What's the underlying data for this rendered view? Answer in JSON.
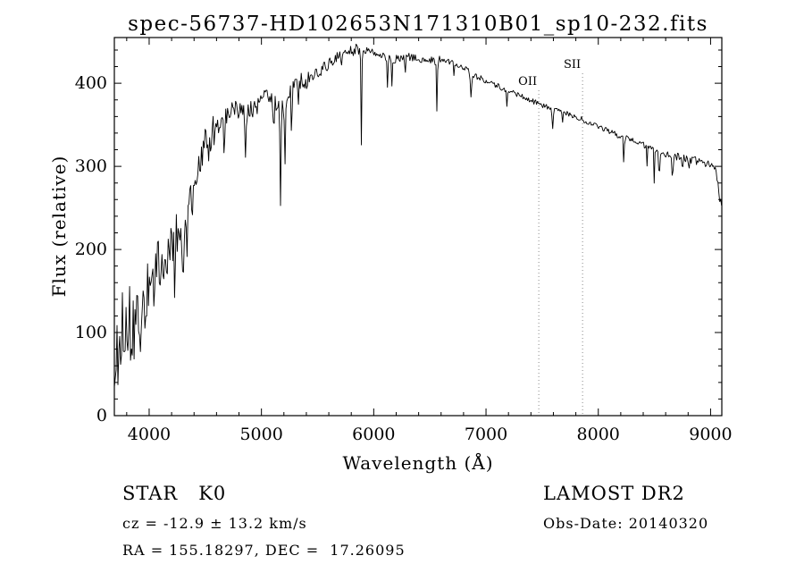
{
  "page": {
    "background": "#ffffff"
  },
  "chart_data": {
    "type": "line",
    "title": "spec-56737-HD102653N171310B01_sp10-232.fits",
    "xlabel": "Wavelength (Å)",
    "ylabel": "Flux (relative)",
    "xlim": [
      3690,
      9100
    ],
    "ylim": [
      0,
      455
    ],
    "xticks": [
      4000,
      5000,
      6000,
      7000,
      8000,
      9000
    ],
    "yticks": [
      0,
      100,
      200,
      300,
      400
    ],
    "x_minor_step": 200,
    "y_minor_step": 20,
    "grid": false,
    "legend": null,
    "colors": {
      "line": "#000000",
      "axis": "#000000",
      "marker_line": "#8a8a8a",
      "text": "#000000",
      "background": "#ffffff"
    },
    "line_markers": [
      {
        "label": "OII",
        "wavelength": 7470,
        "label_y": 95
      },
      {
        "label": "SII",
        "wavelength": 7860,
        "label_y": 76
      }
    ],
    "series": [
      {
        "name": "spectrum",
        "continuum_points": [
          [
            3690,
            45
          ],
          [
            3710,
            95
          ],
          [
            3730,
            60
          ],
          [
            3760,
            110
          ],
          [
            3790,
            85
          ],
          [
            3820,
            120
          ],
          [
            3850,
            90
          ],
          [
            3880,
            125
          ],
          [
            3910,
            100
          ],
          [
            3950,
            140
          ],
          [
            4000,
            160
          ],
          [
            4050,
            175
          ],
          [
            4100,
            185
          ],
          [
            4150,
            195
          ],
          [
            4200,
            205
          ],
          [
            4250,
            215
          ],
          [
            4300,
            225
          ],
          [
            4350,
            255
          ],
          [
            4400,
            285
          ],
          [
            4450,
            305
          ],
          [
            4500,
            325
          ],
          [
            4550,
            340
          ],
          [
            4600,
            350
          ],
          [
            4650,
            355
          ],
          [
            4700,
            360
          ],
          [
            4750,
            363
          ],
          [
            4800,
            366
          ],
          [
            4850,
            362
          ],
          [
            4900,
            372
          ],
          [
            4950,
            380
          ],
          [
            5000,
            384
          ],
          [
            5050,
            386
          ],
          [
            5100,
            380
          ],
          [
            5150,
            372
          ],
          [
            5200,
            376
          ],
          [
            5250,
            386
          ],
          [
            5300,
            396
          ],
          [
            5350,
            402
          ],
          [
            5400,
            406
          ],
          [
            5450,
            409
          ],
          [
            5500,
            413
          ],
          [
            5550,
            418
          ],
          [
            5600,
            423
          ],
          [
            5650,
            429
          ],
          [
            5700,
            433
          ],
          [
            5750,
            437
          ],
          [
            5800,
            439
          ],
          [
            5850,
            441
          ],
          [
            5900,
            437
          ],
          [
            5950,
            439
          ],
          [
            6000,
            438
          ],
          [
            6050,
            435
          ],
          [
            6100,
            431
          ],
          [
            6150,
            429
          ],
          [
            6200,
            429
          ],
          [
            6250,
            431
          ],
          [
            6300,
            432
          ],
          [
            6350,
            431
          ],
          [
            6400,
            430
          ],
          [
            6450,
            428
          ],
          [
            6500,
            429
          ],
          [
            6550,
            426
          ],
          [
            6600,
            429
          ],
          [
            6650,
            427
          ],
          [
            6700,
            424
          ],
          [
            6750,
            421
          ],
          [
            6800,
            418
          ],
          [
            6850,
            414
          ],
          [
            6900,
            409
          ],
          [
            6950,
            406
          ],
          [
            7000,
            403
          ],
          [
            7100,
            397
          ],
          [
            7200,
            391
          ],
          [
            7300,
            385
          ],
          [
            7400,
            379
          ],
          [
            7500,
            374
          ],
          [
            7600,
            369
          ],
          [
            7700,
            365
          ],
          [
            7800,
            360
          ],
          [
            7900,
            354
          ],
          [
            8000,
            348
          ],
          [
            8100,
            342
          ],
          [
            8200,
            336
          ],
          [
            8300,
            331
          ],
          [
            8400,
            326
          ],
          [
            8500,
            320
          ],
          [
            8600,
            316
          ],
          [
            8700,
            312
          ],
          [
            8800,
            309
          ],
          [
            8900,
            306
          ],
          [
            9000,
            303
          ],
          [
            9050,
            298
          ],
          [
            9075,
            265
          ],
          [
            9100,
            250
          ]
        ],
        "absorption_features": [
          [
            3933,
            55,
            7
          ],
          [
            3968,
            50,
            7
          ],
          [
            4045,
            40,
            5
          ],
          [
            4101,
            65,
            6
          ],
          [
            4144,
            40,
            5
          ],
          [
            4226,
            55,
            5
          ],
          [
            4300,
            60,
            9
          ],
          [
            4340,
            50,
            6
          ],
          [
            4383,
            45,
            5
          ],
          [
            4455,
            40,
            5
          ],
          [
            4531,
            35,
            5
          ],
          [
            4668,
            35,
            5
          ],
          [
            4861,
            50,
            6
          ],
          [
            4920,
            30,
            5
          ],
          [
            4957,
            25,
            4
          ],
          [
            5110,
            40,
            5
          ],
          [
            5170,
            125,
            6
          ],
          [
            5208,
            80,
            5
          ],
          [
            5270,
            55,
            6
          ],
          [
            5328,
            35,
            5
          ],
          [
            5405,
            25,
            4
          ],
          [
            5710,
            20,
            4
          ],
          [
            5890,
            115,
            5
          ],
          [
            6122,
            35,
            5
          ],
          [
            6162,
            30,
            4
          ],
          [
            6280,
            20,
            5
          ],
          [
            6563,
            60,
            6
          ],
          [
            6717,
            20,
            4
          ],
          [
            6867,
            30,
            8
          ],
          [
            7186,
            18,
            6
          ],
          [
            7594,
            25,
            8
          ],
          [
            7680,
            15,
            5
          ],
          [
            8227,
            30,
            5
          ],
          [
            8434,
            25,
            4
          ],
          [
            8498,
            45,
            4
          ],
          [
            8542,
            65,
            4
          ],
          [
            8662,
            60,
            4
          ],
          [
            8750,
            20,
            4
          ],
          [
            8806,
            25,
            4
          ]
        ]
      }
    ],
    "noise": {
      "seed": 20140320,
      "sample_step": 8,
      "amplitude_segments": [
        [
          3690,
          3950,
          42
        ],
        [
          3950,
          4250,
          33
        ],
        [
          4250,
          4600,
          22
        ],
        [
          4600,
          5000,
          15
        ],
        [
          5000,
          5400,
          12
        ],
        [
          5400,
          5900,
          7
        ],
        [
          5900,
          6600,
          5
        ],
        [
          6600,
          7600,
          3.5
        ],
        [
          7600,
          8400,
          3.5
        ],
        [
          8400,
          9101,
          5
        ]
      ]
    }
  },
  "annotations": {
    "star_class": "STAR   K0",
    "survey": "LAMOST DR2",
    "cz": "cz = -12.9 ± 13.2 km/s",
    "obs_date": "Obs-Date: 20140320",
    "radec": "RA = 155.18297, DEC =  17.26095"
  }
}
